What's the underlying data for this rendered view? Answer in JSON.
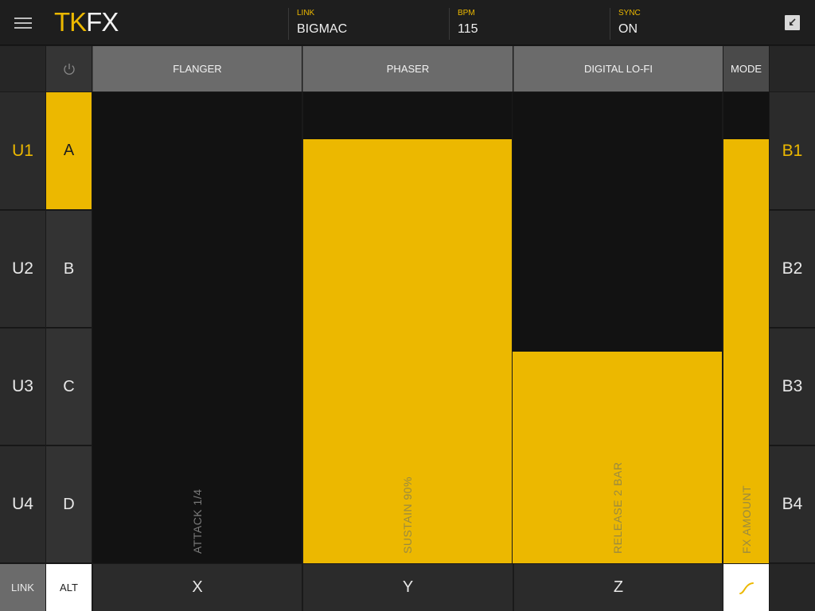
{
  "colors": {
    "accent": "#ecb800"
  },
  "header": {
    "logo_left": "TK",
    "logo_right": "FX",
    "link": {
      "label": "LINK",
      "value": "BIGMAC"
    },
    "bpm": {
      "label": "BPM",
      "value": "115"
    },
    "sync": {
      "label": "SYNC",
      "value": "ON"
    },
    "menu_icon": "hamburger-icon",
    "collapse_icon": "collapse-arrow-icon"
  },
  "tabs": {
    "power_icon": "power-icon",
    "fx1": "FLANGER",
    "fx2": "PHASER",
    "fx3": "DIGITAL LO-FI",
    "mode": "MODE"
  },
  "left_column": [
    "U1",
    "U2",
    "U3",
    "U4"
  ],
  "ab_column": [
    "A",
    "B",
    "C",
    "D"
  ],
  "right_column": [
    "B1",
    "B2",
    "B3",
    "B4"
  ],
  "active": {
    "u": "U1",
    "ab": "A",
    "b": "B1"
  },
  "sliders": {
    "attack": {
      "label": "ATTACK 1/4",
      "level": 0.0
    },
    "sustain": {
      "label": "SUSTAIN 90%",
      "level": 0.9
    },
    "release": {
      "label": "RELEASE 2 BAR",
      "level": 0.45
    },
    "fx_amount": {
      "label": "FX AMOUNT",
      "level": 0.9
    }
  },
  "bottom": {
    "link": "LINK",
    "alt": "ALT",
    "x": "X",
    "y": "Y",
    "z": "Z",
    "curve_icon": "curve-icon"
  }
}
